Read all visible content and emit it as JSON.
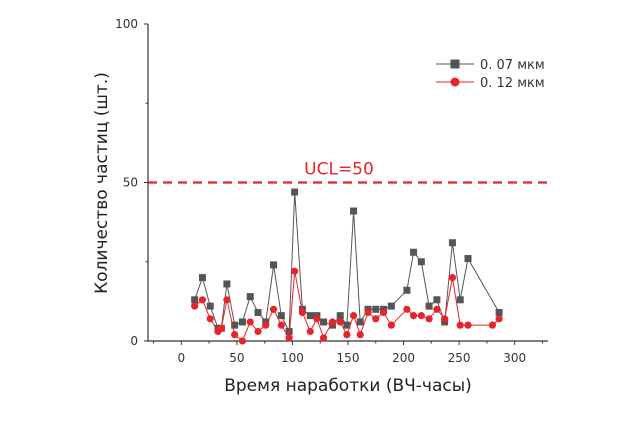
{
  "chart_data": {
    "type": "line",
    "ylabel": "Количество частиц (шт.)",
    "xlabel": "Время наработки (ВЧ-часы)",
    "xlim": [
      -30,
      330
    ],
    "ylim": [
      0,
      100
    ],
    "xticks": [
      0,
      50,
      100,
      150,
      200,
      250,
      300
    ],
    "yticks": [
      0,
      50,
      100
    ],
    "grid": false,
    "legend_position": "top-right",
    "ucl": {
      "value": 50,
      "label": "UCL=50",
      "color": "#e8232a"
    },
    "series": [
      {
        "name": "0. 07 мкм",
        "color": "#555555",
        "marker": "square",
        "x": [
          12,
          19,
          26,
          33,
          36,
          41,
          48,
          55,
          62,
          69,
          76,
          83,
          90,
          97,
          102,
          109,
          116,
          122,
          128,
          136,
          143,
          149,
          155,
          161,
          168,
          175,
          182,
          189,
          203,
          209,
          216,
          223,
          230,
          237,
          244,
          251,
          258,
          286
        ],
        "y": [
          13,
          20,
          11,
          4,
          4,
          18,
          5,
          6,
          14,
          9,
          6,
          24,
          8,
          3,
          47,
          10,
          8,
          8,
          6,
          5,
          8,
          5,
          41,
          6,
          10,
          10,
          10,
          11,
          16,
          28,
          25,
          11,
          13,
          6,
          31,
          13,
          26,
          9
        ]
      },
      {
        "name": "0. 12 мкм",
        "color": "#e8232a",
        "marker": "circle",
        "x": [
          12,
          19,
          26,
          33,
          36,
          41,
          48,
          55,
          62,
          69,
          76,
          83,
          90,
          97,
          102,
          109,
          116,
          122,
          128,
          136,
          143,
          149,
          155,
          161,
          168,
          175,
          182,
          189,
          203,
          209,
          216,
          223,
          230,
          237,
          244,
          251,
          258,
          280,
          286
        ],
        "y": [
          11,
          13,
          7,
          3,
          4,
          13,
          2,
          0,
          6,
          3,
          5,
          10,
          5,
          1,
          22,
          9,
          3,
          7,
          1,
          6,
          6,
          2,
          8,
          2,
          9,
          7,
          9,
          5,
          10,
          8,
          8,
          7,
          10,
          7,
          20,
          5,
          5,
          5,
          7
        ]
      }
    ]
  }
}
